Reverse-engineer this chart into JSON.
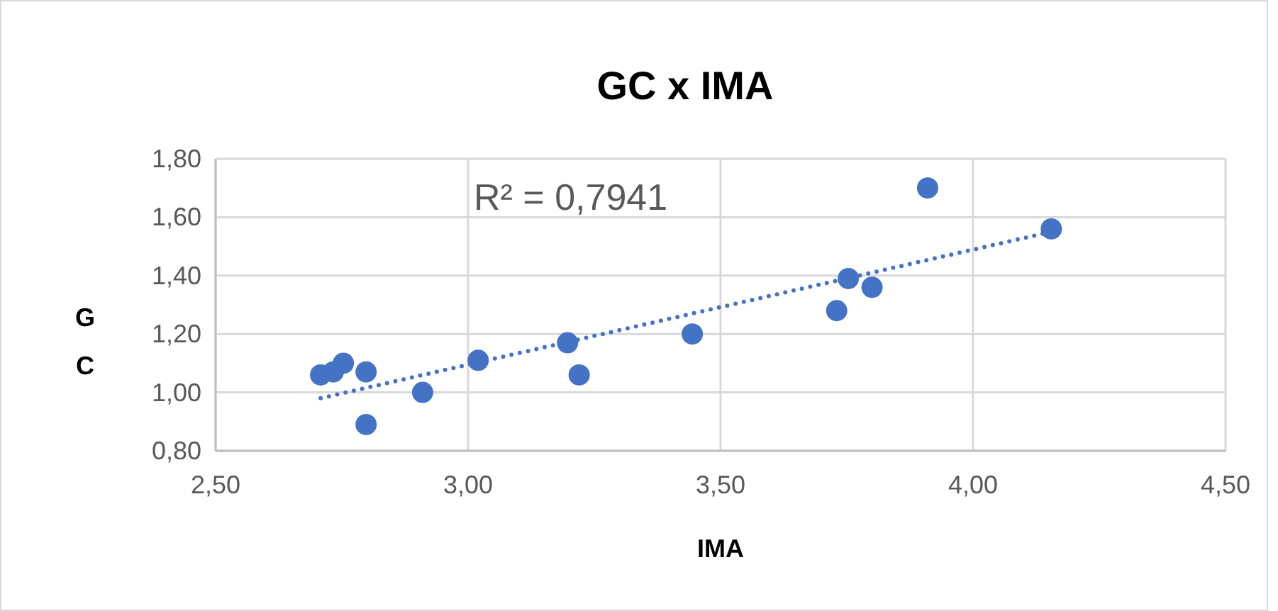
{
  "chart_data": {
    "type": "scatter",
    "title": "GC x IMA",
    "xlabel": "IMA",
    "ylabel": "GC",
    "xlim": [
      2.5,
      4.5
    ],
    "xticks": [
      {
        "value": 2.5,
        "label": "2,50"
      },
      {
        "value": 3,
        "label": "3,00"
      },
      {
        "value": 3.5,
        "label": "3,50"
      },
      {
        "value": 4,
        "label": "4,00"
      },
      {
        "value": 4.5,
        "label": "4,50"
      }
    ],
    "ylim": [
      0.8,
      1.8
    ],
    "yticks": [
      {
        "value": 0.8,
        "label": "0,80"
      },
      {
        "value": 1,
        "label": "1,00"
      },
      {
        "value": 1.2,
        "label": "1,20"
      },
      {
        "value": 1.4,
        "label": "1,40"
      },
      {
        "value": 1.6,
        "label": "1,60"
      },
      {
        "value": 1.8,
        "label": "1,80"
      }
    ],
    "grid": true,
    "marker": "circle",
    "series": [
      {
        "color": "#4472c4",
        "x": [
          2.708,
          2.733,
          2.753,
          2.798,
          2.798,
          2.91,
          3.02,
          3.197,
          3.22,
          3.444,
          3.73,
          3.753,
          3.8,
          3.91,
          4.155
        ],
        "values": [
          1.06,
          1.07,
          1.1,
          1.07,
          0.89,
          1.0,
          1.11,
          1.17,
          1.06,
          1.2,
          1.28,
          1.39,
          1.36,
          1.7,
          1.56
        ]
      },
      {
        "type": "line",
        "color": "#4472c4",
        "line_style": "dotted",
        "marker": "none",
        "x": [
          2.708,
          4.155
        ],
        "values": [
          0.98,
          1.55
        ]
      }
    ],
    "annotations": [
      "R² = 0,7941"
    ]
  }
}
